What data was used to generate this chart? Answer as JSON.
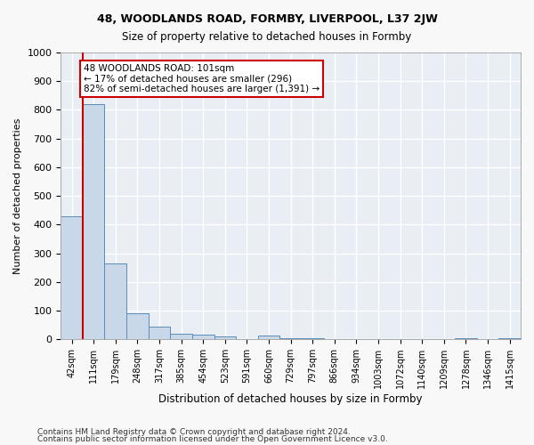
{
  "title1": "48, WOODLANDS ROAD, FORMBY, LIVERPOOL, L37 2JW",
  "title2": "Size of property relative to detached houses in Formby",
  "xlabel": "Distribution of detached houses by size in Formby",
  "ylabel": "Number of detached properties",
  "categories": [
    "42sqm",
    "111sqm",
    "179sqm",
    "248sqm",
    "317sqm",
    "385sqm",
    "454sqm",
    "523sqm",
    "591sqm",
    "660sqm",
    "729sqm",
    "797sqm",
    "866sqm",
    "934sqm",
    "1003sqm",
    "1072sqm",
    "1140sqm",
    "1209sqm",
    "1278sqm",
    "1346sqm",
    "1415sqm"
  ],
  "values": [
    430,
    820,
    265,
    90,
    45,
    20,
    15,
    10,
    0,
    12,
    5,
    5,
    0,
    0,
    0,
    0,
    0,
    0,
    5,
    0,
    5
  ],
  "bar_color": "#c8d8e8",
  "bar_edge_color": "#5b8db8",
  "bg_color": "#e8eef4",
  "grid_color": "#ffffff",
  "vline_x": 1,
  "vline_color": "#cc0000",
  "annotation_text": "48 WOODLANDS ROAD: 101sqm\n← 17% of detached houses are smaller (296)\n82% of semi-detached houses are larger (1,391) →",
  "annotation_box_color": "#ffffff",
  "annotation_box_edge": "#cc0000",
  "ylim": [
    0,
    1000
  ],
  "yticks": [
    0,
    100,
    200,
    300,
    400,
    500,
    600,
    700,
    800,
    900,
    1000
  ],
  "footer1": "Contains HM Land Registry data © Crown copyright and database right 2024.",
  "footer2": "Contains public sector information licensed under the Open Government Licence v3.0."
}
